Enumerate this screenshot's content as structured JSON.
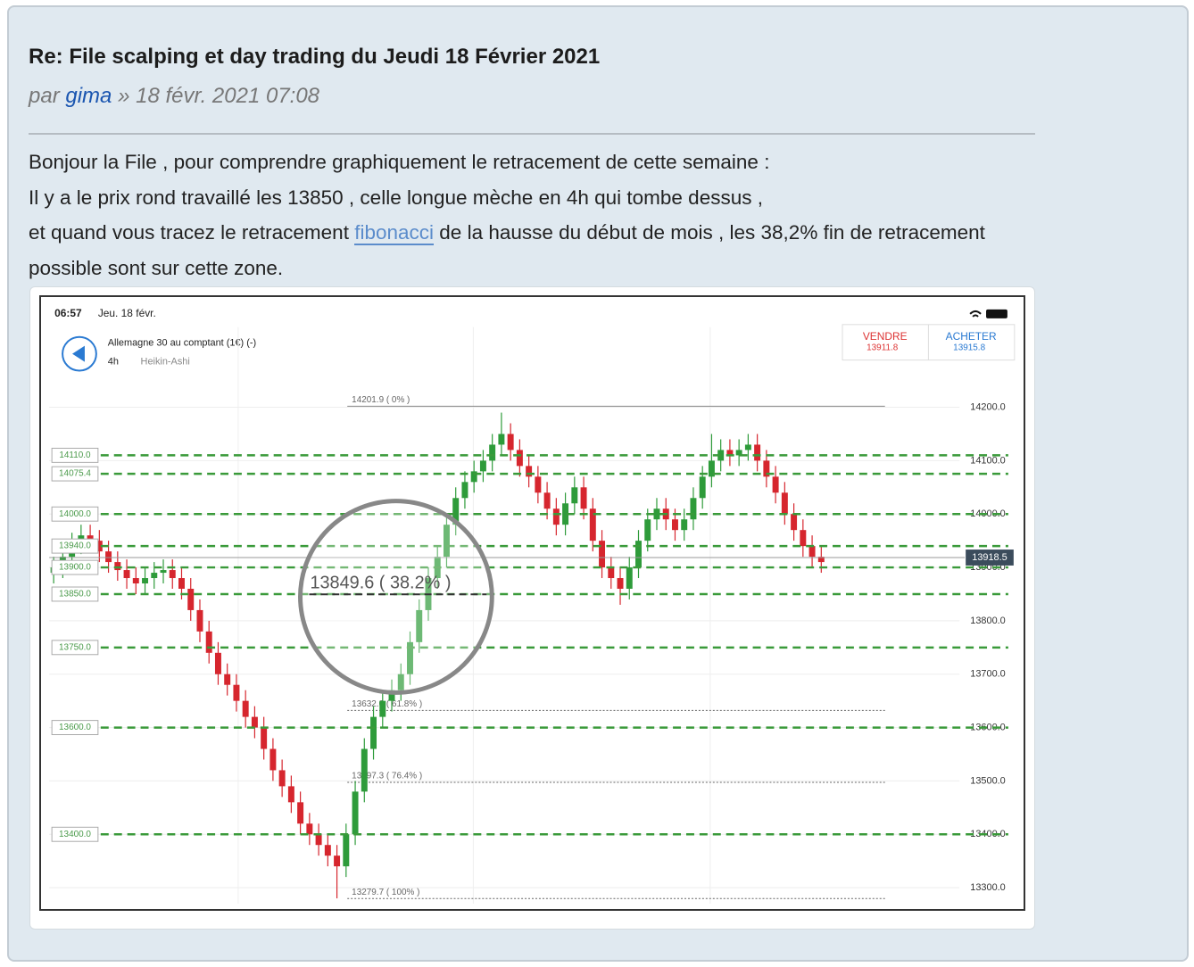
{
  "post": {
    "title": "Re: File scalping et day trading du Jeudi 18 Février 2021",
    "author_prefix": "par",
    "author": "gima",
    "date_separator": "»",
    "date": "18 févr. 2021 07:08",
    "body": [
      "Bonjour la File , pour comprendre graphiquement le retracement de cette semaine :",
      "Il y a le prix rond travaillé les 13850 , celle longue mèche en 4h qui tombe dessus ,",
      "et quand vous tracez le retracement",
      "fibonacci",
      "de la hausse du début de mois , les 38,2% fin de retracement possible sont sur cette zone."
    ]
  },
  "chart_data": {
    "type": "candlestick",
    "status_time": "06:57",
    "status_date": "Jeu. 18 févr.",
    "instrument": "Allemagne 30 au comptant (1€) (-)",
    "timeframe": "4h",
    "chart_style": "Heikin-Ashi",
    "sell_label": "VENDRE",
    "sell_price": {
      "value": 13911.8,
      "label": "13911.8"
    },
    "buy_label": "ACHETER",
    "buy_price": {
      "value": 13915.8,
      "label": "13915.8"
    },
    "ylim": [
      13270,
      14350
    ],
    "yticks": [
      {
        "value": 13300,
        "label": "13300.0"
      },
      {
        "value": 13400,
        "label": "13400.0"
      },
      {
        "value": 13500,
        "label": "13500.0"
      },
      {
        "value": 13600,
        "label": "13600.0"
      },
      {
        "value": 13700,
        "label": "13700.0"
      },
      {
        "value": 13800,
        "label": "13800.0"
      },
      {
        "value": 13900,
        "label": "13900.0"
      },
      {
        "value": 14000,
        "label": "14000.0"
      },
      {
        "value": 14100,
        "label": "14100.0"
      },
      {
        "value": 14200,
        "label": "14200.0"
      }
    ],
    "current_price": {
      "value": 13918.5,
      "label": "13918.5"
    },
    "levels": [
      {
        "value": 14110,
        "label": "14110.0"
      },
      {
        "value": 14075.4,
        "label": "14075.4"
      },
      {
        "value": 14000,
        "label": "14000.0"
      },
      {
        "value": 13940,
        "label": "13940.0"
      },
      {
        "value": 13900,
        "label": "13900.0"
      },
      {
        "value": 13850,
        "label": "13850.0"
      },
      {
        "value": 13750,
        "label": "13750.0"
      },
      {
        "value": 13600,
        "label": "13600.0"
      },
      {
        "value": 13400,
        "label": "13400.0"
      }
    ],
    "fib": [
      {
        "value": 14201.9,
        "label": "14201.9 ( 0% )"
      },
      {
        "value": 13632,
        "label": "13632.0 ( 61.8% )"
      },
      {
        "value": 13497.3,
        "label": "13497.3 ( 76.4% )"
      },
      {
        "value": 13279.7,
        "label": "13279.7 ( 100% )"
      }
    ],
    "magnifier": {
      "value": 13849.6,
      "label": "13849.6 ( 38.2% )"
    },
    "open": [
      13890,
      13900,
      13920,
      13945,
      13960,
      13950,
      13930,
      13910,
      13895,
      13880,
      13870,
      13880,
      13890,
      13895,
      13880,
      13860,
      13820,
      13780,
      13740,
      13700,
      13680,
      13650,
      13620,
      13600,
      13560,
      13520,
      13490,
      13460,
      13420,
      13400,
      13380,
      13360,
      13340,
      13400,
      13480,
      13560,
      13620,
      13650,
      13670,
      13700,
      13760,
      13820,
      13880,
      13920,
      13980,
      14030,
      14060,
      14080,
      14100,
      14130,
      14150,
      14120,
      14090,
      14070,
      14040,
      14010,
      13980,
      14020,
      14050,
      14010,
      13950,
      13900,
      13880,
      13860,
      13900,
      13950,
      13990,
      14010,
      13990,
      13970,
      13990,
      14030,
      14070,
      14100,
      14120,
      14110,
      14120,
      14130,
      14100,
      14070,
      14040,
      14000,
      13970,
      13940,
      13920
    ],
    "close": [
      13900,
      13920,
      13945,
      13960,
      13950,
      13930,
      13910,
      13895,
      13880,
      13870,
      13880,
      13890,
      13895,
      13880,
      13860,
      13820,
      13780,
      13740,
      13700,
      13680,
      13650,
      13620,
      13600,
      13560,
      13520,
      13490,
      13460,
      13420,
      13400,
      13380,
      13360,
      13340,
      13400,
      13480,
      13560,
      13620,
      13650,
      13670,
      13700,
      13760,
      13820,
      13880,
      13920,
      13980,
      14030,
      14060,
      14080,
      14100,
      14130,
      14150,
      14120,
      14090,
      14070,
      14040,
      14010,
      13980,
      14020,
      14050,
      14010,
      13950,
      13900,
      13880,
      13860,
      13900,
      13950,
      13990,
      14010,
      13990,
      13970,
      13990,
      14030,
      14070,
      14100,
      14120,
      14110,
      14120,
      14130,
      14100,
      14070,
      14040,
      14000,
      13970,
      13940,
      13920,
      13910
    ],
    "high": [
      13920,
      13940,
      13965,
      13980,
      13980,
      13970,
      13950,
      13930,
      13915,
      13900,
      13900,
      13910,
      13915,
      13915,
      13900,
      13880,
      13840,
      13800,
      13760,
      13720,
      13700,
      13670,
      13640,
      13620,
      13580,
      13540,
      13510,
      13480,
      13440,
      13420,
      13400,
      13380,
      13420,
      13500,
      13580,
      13640,
      13670,
      13690,
      13720,
      13780,
      13840,
      13900,
      13940,
      14000,
      14050,
      14080,
      14100,
      14120,
      14150,
      14190,
      14170,
      14140,
      14110,
      14090,
      14060,
      14030,
      14040,
      14070,
      14070,
      14030,
      13970,
      13920,
      13900,
      13920,
      13970,
      14010,
      14030,
      14030,
      14010,
      14010,
      14050,
      14090,
      14150,
      14140,
      14140,
      14140,
      14150,
      14150,
      14120,
      14090,
      14060,
      14020,
      13990,
      13960,
      13940
    ],
    "low": [
      13870,
      13880,
      13900,
      13925,
      13930,
      13910,
      13890,
      13875,
      13860,
      13850,
      13850,
      13860,
      13870,
      13860,
      13840,
      13800,
      13760,
      13720,
      13680,
      13660,
      13630,
      13600,
      13580,
      13540,
      13500,
      13470,
      13440,
      13400,
      13380,
      13360,
      13340,
      13280,
      13320,
      13380,
      13460,
      13540,
      13600,
      13630,
      13650,
      13680,
      13740,
      13800,
      13860,
      13900,
      13960,
      14010,
      14040,
      14060,
      14080,
      14110,
      14100,
      14070,
      14050,
      14020,
      13990,
      13960,
      13960,
      14000,
      13990,
      13930,
      13880,
      13860,
      13830,
      13840,
      13880,
      13930,
      13970,
      13970,
      13950,
      13950,
      13970,
      14010,
      14050,
      14080,
      14090,
      14090,
      14100,
      14080,
      14050,
      14020,
      13980,
      13950,
      13920,
      13900,
      13890
    ]
  }
}
